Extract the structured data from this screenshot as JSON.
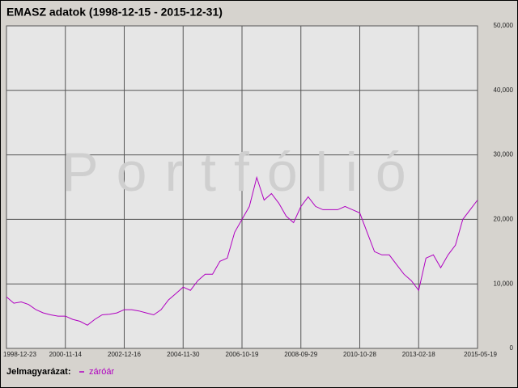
{
  "chart_data": {
    "type": "line",
    "title": "EMASZ adatok (1998-12-15 - 2015-12-31)",
    "watermark": "Portfólió",
    "legend_title": "Jelmagyarázat:",
    "categories": [
      "1998-12-23",
      null,
      null,
      null,
      null,
      null,
      null,
      null,
      "2000-11-14",
      null,
      null,
      null,
      null,
      null,
      null,
      null,
      "2002-12-16",
      null,
      null,
      null,
      null,
      null,
      null,
      null,
      "2004-11-30",
      null,
      null,
      null,
      null,
      null,
      null,
      null,
      "2006-10-19",
      null,
      null,
      null,
      null,
      null,
      null,
      null,
      "2008-09-29",
      null,
      null,
      null,
      null,
      null,
      null,
      null,
      "2010-10-28",
      null,
      null,
      null,
      null,
      null,
      null,
      null,
      "2013-02-18",
      null,
      null,
      null,
      null,
      null,
      null,
      null,
      "2015-05-19"
    ],
    "series": [
      {
        "name": "záróár",
        "color": "#b000c0",
        "values": [
          8000,
          7000,
          7200,
          6800,
          6000,
          5500,
          5200,
          5000,
          5000,
          4500,
          4200,
          3600,
          4500,
          5200,
          5300,
          5500,
          6000,
          6000,
          5800,
          5500,
          5200,
          6000,
          7500,
          8500,
          9500,
          9000,
          10500,
          11500,
          11500,
          13500,
          14000,
          18000,
          20000,
          22000,
          26500,
          23000,
          24000,
          22500,
          20500,
          19500,
          22000,
          23500,
          22000,
          21500,
          21500,
          21500,
          22000,
          21500,
          21000,
          18000,
          15000,
          14500,
          14500,
          13000,
          11500,
          10500,
          9000,
          14000,
          14500,
          12500,
          14500,
          16000,
          20000,
          21500,
          23000
        ]
      }
    ],
    "ylim": [
      0,
      50000
    ],
    "yticks": [
      0,
      {
        "value": 10000,
        "label": "10,000"
      },
      {
        "value": 20000,
        "label": "20,000"
      },
      {
        "value": 30000,
        "label": "30,000"
      },
      {
        "value": 40000,
        "label": "40,000"
      },
      {
        "value": 50000,
        "label": "50,000"
      }
    ],
    "grid": true
  }
}
